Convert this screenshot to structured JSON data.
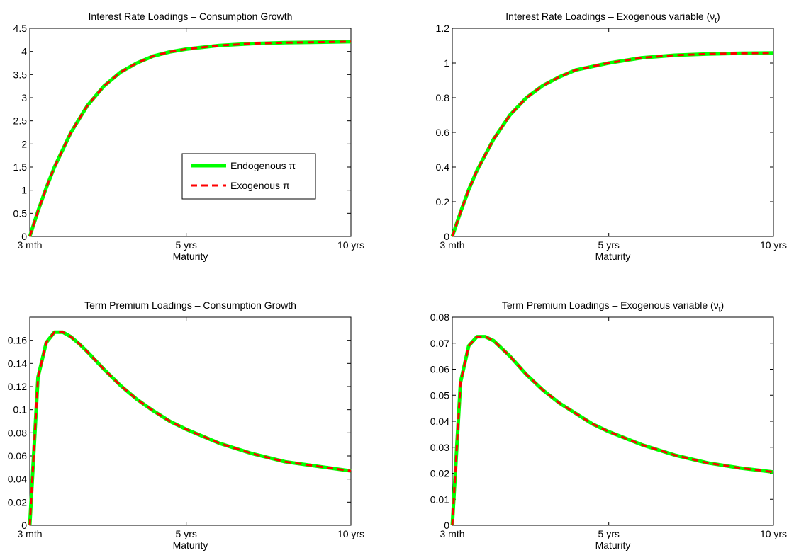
{
  "chart_data": [
    {
      "type": "line",
      "title": "Interest Rate Loadings – Consumption Growth",
      "xlabel": "Maturity",
      "x_ticks": [
        "3 mth",
        "5 yrs",
        "10 yrs"
      ],
      "xlim": [
        0.25,
        10
      ],
      "ylim": [
        0,
        4.5
      ],
      "y_ticks": [
        "0",
        "0.5",
        "1",
        "1.5",
        "2",
        "2.5",
        "3",
        "3.5",
        "4",
        "4.5"
      ],
      "y_tick_values": [
        0,
        0.5,
        1,
        1.5,
        2,
        2.5,
        3,
        3.5,
        4,
        4.5
      ],
      "grid": false,
      "legend": {
        "placement": "center-right",
        "entries": [
          "Endogenous π",
          "Exogenous π"
        ]
      },
      "x": [
        0.25,
        0.5,
        0.75,
        1.0,
        1.5,
        2.0,
        2.5,
        3.0,
        3.5,
        4.0,
        4.5,
        5.0,
        6.0,
        7.0,
        8.0,
        9.0,
        10.0
      ],
      "series": [
        {
          "name": "Endogenous π",
          "color": "#00ff00",
          "style": "solid",
          "values": [
            0,
            0.55,
            1.05,
            1.5,
            2.25,
            2.83,
            3.25,
            3.55,
            3.75,
            3.9,
            3.99,
            4.05,
            4.13,
            4.17,
            4.19,
            4.2,
            4.21
          ]
        },
        {
          "name": "Exogenous π",
          "color": "#ff0000",
          "style": "dashed",
          "values": [
            0,
            0.55,
            1.05,
            1.5,
            2.25,
            2.83,
            3.25,
            3.55,
            3.75,
            3.9,
            3.99,
            4.05,
            4.13,
            4.17,
            4.19,
            4.2,
            4.21
          ]
        }
      ]
    },
    {
      "type": "line",
      "title": "Interest Rate Loadings – Exogenous variable (ν",
      "title_sub": "t",
      "title_tail": ")",
      "xlabel": "Maturity",
      "x_ticks": [
        "3 mth",
        "5 yrs",
        "10 yrs"
      ],
      "xlim": [
        0.25,
        10
      ],
      "ylim": [
        0,
        1.2
      ],
      "y_ticks": [
        "0",
        "0.2",
        "0.4",
        "0.6",
        "0.8",
        "1",
        "1.2"
      ],
      "y_tick_values": [
        0,
        0.2,
        0.4,
        0.6,
        0.8,
        1,
        1.2
      ],
      "grid": false,
      "x": [
        0.25,
        0.5,
        0.75,
        1.0,
        1.5,
        2.0,
        2.5,
        3.0,
        3.5,
        4.0,
        4.5,
        5.0,
        6.0,
        7.0,
        8.0,
        9.0,
        10.0
      ],
      "series": [
        {
          "color": "#00ff00",
          "style": "solid",
          "values": [
            0,
            0.14,
            0.27,
            0.38,
            0.56,
            0.7,
            0.8,
            0.87,
            0.92,
            0.96,
            0.98,
            1.0,
            1.03,
            1.045,
            1.052,
            1.056,
            1.058
          ]
        },
        {
          "color": "#ff0000",
          "style": "dashed",
          "values": [
            0,
            0.14,
            0.27,
            0.38,
            0.56,
            0.7,
            0.8,
            0.87,
            0.92,
            0.96,
            0.98,
            1.0,
            1.03,
            1.045,
            1.052,
            1.056,
            1.058
          ]
        }
      ]
    },
    {
      "type": "line",
      "title": "Term  Premium Loadings – Consumption Growth",
      "xlabel": "Maturity",
      "x_ticks": [
        "3 mth",
        "5 yrs",
        "10 yrs"
      ],
      "xlim": [
        0.25,
        10
      ],
      "ylim": [
        0,
        0.18
      ],
      "y_ticks": [
        "0",
        "0.02",
        "0.04",
        "0.06",
        "0.08",
        "0.1",
        "0.12",
        "0.14",
        "0.16"
      ],
      "y_tick_values": [
        0,
        0.02,
        0.04,
        0.06,
        0.08,
        0.1,
        0.12,
        0.14,
        0.16
      ],
      "grid": false,
      "x": [
        0.25,
        0.5,
        0.75,
        1.0,
        1.25,
        1.5,
        1.75,
        2.0,
        2.5,
        3.0,
        3.5,
        4.0,
        4.5,
        5.0,
        6.0,
        7.0,
        8.0,
        9.0,
        10.0
      ],
      "series": [
        {
          "color": "#00ff00",
          "style": "solid",
          "values": [
            0,
            0.128,
            0.158,
            0.167,
            0.167,
            0.163,
            0.157,
            0.15,
            0.135,
            0.121,
            0.109,
            0.099,
            0.09,
            0.083,
            0.071,
            0.062,
            0.055,
            0.051,
            0.047
          ]
        },
        {
          "color": "#ff0000",
          "style": "dashed",
          "values": [
            0,
            0.128,
            0.158,
            0.167,
            0.167,
            0.163,
            0.157,
            0.15,
            0.135,
            0.121,
            0.109,
            0.099,
            0.09,
            0.083,
            0.071,
            0.062,
            0.055,
            0.051,
            0.047
          ]
        }
      ]
    },
    {
      "type": "line",
      "title": "Term  Premium Loadings – Exogenous variable (ν",
      "title_sub": "t",
      "title_tail": ")",
      "xlabel": "Maturity",
      "x_ticks": [
        "3 mth",
        "5 yrs",
        "10 yrs"
      ],
      "xlim": [
        0.25,
        10
      ],
      "ylim": [
        0,
        0.08
      ],
      "y_ticks": [
        "0",
        "0.01",
        "0.02",
        "0.03",
        "0.04",
        "0.05",
        "0.06",
        "0.07",
        "0.08"
      ],
      "y_tick_values": [
        0,
        0.01,
        0.02,
        0.03,
        0.04,
        0.05,
        0.06,
        0.07,
        0.08
      ],
      "grid": false,
      "x": [
        0.25,
        0.5,
        0.75,
        1.0,
        1.25,
        1.5,
        1.75,
        2.0,
        2.5,
        3.0,
        3.5,
        4.0,
        4.5,
        5.0,
        6.0,
        7.0,
        8.0,
        9.0,
        10.0
      ],
      "series": [
        {
          "color": "#00ff00",
          "style": "solid",
          "values": [
            0,
            0.055,
            0.069,
            0.0725,
            0.0725,
            0.071,
            0.068,
            0.065,
            0.058,
            0.052,
            0.047,
            0.043,
            0.039,
            0.036,
            0.031,
            0.027,
            0.024,
            0.022,
            0.0205
          ]
        },
        {
          "color": "#ff0000",
          "style": "dashed",
          "values": [
            0,
            0.055,
            0.069,
            0.0725,
            0.0725,
            0.071,
            0.068,
            0.065,
            0.058,
            0.052,
            0.047,
            0.043,
            0.039,
            0.036,
            0.031,
            0.027,
            0.024,
            0.022,
            0.0205
          ]
        }
      ]
    }
  ]
}
